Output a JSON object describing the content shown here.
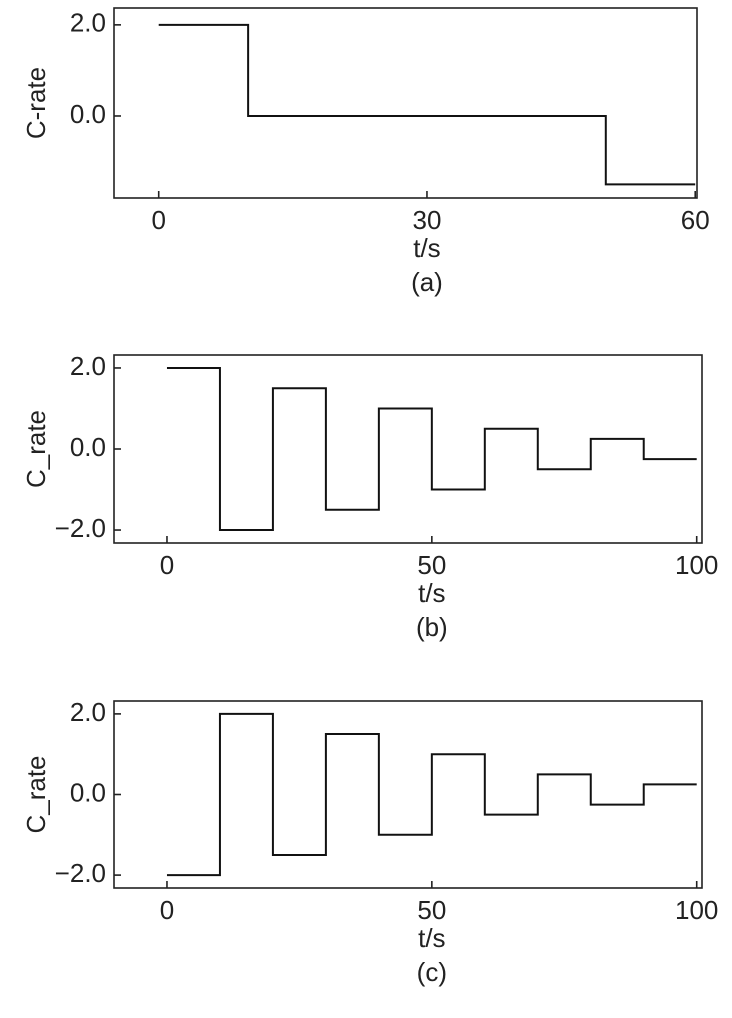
{
  "chart_data": [
    {
      "type": "line",
      "caption": "(a)",
      "xlabel": "t/s",
      "ylabel": "C-rate",
      "x": [
        0,
        10,
        10,
        50,
        50,
        60
      ],
      "series": [
        {
          "color": "#111111",
          "values": [
            2,
            2,
            0,
            0,
            -1.5,
            -1.5
          ]
        }
      ],
      "xlim": [
        -5,
        60.2
      ],
      "xticks": [
        0,
        30,
        60
      ],
      "ylim": [
        -1.8,
        2.37
      ],
      "yticks": [
        {
          "value": 0,
          "label": "0.0"
        },
        {
          "value": 2,
          "label": "2.0"
        }
      ],
      "grid": false
    },
    {
      "type": "line",
      "caption": "(b)",
      "xlabel": "t/s",
      "ylabel": "C_rate",
      "x": [
        0,
        10,
        10,
        20,
        20,
        30,
        30,
        40,
        40,
        50,
        50,
        60,
        60,
        70,
        70,
        80,
        80,
        90,
        90,
        100
      ],
      "series": [
        {
          "color": "#111111",
          "values": [
            2,
            2,
            -2,
            -2,
            1.5,
            1.5,
            -1.5,
            -1.5,
            1,
            1,
            -1,
            -1,
            0.5,
            0.5,
            -0.5,
            -0.5,
            0.25,
            0.25,
            -0.25,
            -0.25
          ]
        }
      ],
      "xlim": [
        -10,
        101
      ],
      "xticks": [
        0,
        50,
        100
      ],
      "ylim": [
        -2.32,
        2.32
      ],
      "yticks": [
        {
          "value": -2,
          "label": "−2.0"
        },
        {
          "value": 0,
          "label": "0.0"
        },
        {
          "value": 2,
          "label": "2.0"
        }
      ],
      "grid": false
    },
    {
      "type": "line",
      "caption": "(c)",
      "xlabel": "t/s",
      "ylabel": "C_rate",
      "x": [
        0,
        10,
        10,
        20,
        20,
        30,
        30,
        40,
        40,
        50,
        50,
        60,
        60,
        70,
        70,
        80,
        80,
        90,
        90,
        100
      ],
      "series": [
        {
          "color": "#111111",
          "values": [
            -2,
            -2,
            2,
            2,
            -1.5,
            -1.5,
            1.5,
            1.5,
            -1,
            -1,
            1,
            1,
            -0.5,
            -0.5,
            0.5,
            0.5,
            -0.25,
            -0.25,
            0.25,
            0.25
          ]
        }
      ],
      "xlim": [
        -10,
        101
      ],
      "xticks": [
        0,
        50,
        100
      ],
      "ylim": [
        -2.32,
        2.32
      ],
      "yticks": [
        {
          "value": -2,
          "label": "−2.0"
        },
        {
          "value": 0,
          "label": "0.0"
        },
        {
          "value": 2,
          "label": "2.0"
        }
      ],
      "grid": false
    }
  ]
}
